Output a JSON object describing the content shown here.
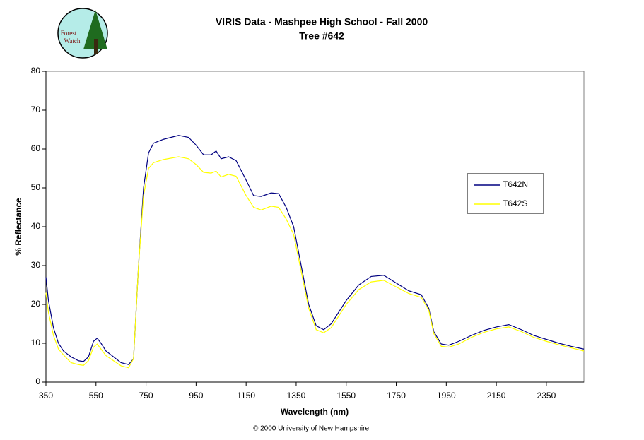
{
  "chart_data": {
    "type": "line",
    "title": "VIRIS Data - Mashpee High School - Fall 2000",
    "subtitle": "Tree #642",
    "logo": [
      "Forest",
      "Watch"
    ],
    "xlabel": "Wavelength (nm)",
    "ylabel": "% Reflectance",
    "copyright": "© 2000 University of New Hampshire",
    "x": [
      350,
      360,
      380,
      400,
      420,
      450,
      480,
      500,
      520,
      540,
      555,
      570,
      590,
      620,
      650,
      680,
      700,
      720,
      740,
      760,
      780,
      820,
      880,
      920,
      950,
      980,
      1010,
      1030,
      1050,
      1080,
      1110,
      1150,
      1180,
      1210,
      1250,
      1280,
      1310,
      1340,
      1370,
      1400,
      1430,
      1460,
      1490,
      1550,
      1600,
      1650,
      1700,
      1750,
      1800,
      1850,
      1880,
      1900,
      1930,
      1960,
      2000,
      2050,
      2100,
      2150,
      2200,
      2250,
      2300,
      2350,
      2400,
      2450,
      2500
    ],
    "series": [
      {
        "name": "T642N",
        "color": "#000080",
        "values": [
          27,
          21,
          14,
          10,
          8,
          6.5,
          5.5,
          5.3,
          6.5,
          10.5,
          11.3,
          10,
          8,
          6.5,
          5,
          4.5,
          6,
          30,
          50,
          59,
          61.5,
          62.5,
          63.5,
          63,
          61,
          58.5,
          58.5,
          59.5,
          57.5,
          58,
          57,
          52,
          48,
          47.8,
          48.7,
          48.5,
          45,
          40,
          30,
          20,
          14.5,
          13.5,
          15,
          21,
          25,
          27.2,
          27.5,
          25.5,
          23.5,
          22.5,
          19,
          13,
          9.8,
          9.5,
          10.5,
          12,
          13.3,
          14.2,
          14.8,
          13.5,
          12,
          11,
          10,
          9.2,
          8.5
        ]
      },
      {
        "name": "T642S",
        "color": "#ffff00",
        "values": [
          23,
          18,
          12,
          8.5,
          7,
          5,
          4.5,
          4.3,
          5.5,
          9,
          9.8,
          8.5,
          6.8,
          5.5,
          4.2,
          3.7,
          6,
          30,
          48,
          55,
          56.5,
          57.3,
          58,
          57.5,
          56,
          54,
          53.8,
          54.3,
          52.8,
          53.5,
          53,
          48,
          45,
          44.3,
          45.3,
          45,
          42,
          38,
          28.5,
          19,
          13.5,
          12.7,
          14,
          20,
          23.8,
          25.8,
          26.2,
          24.5,
          22.8,
          21.8,
          18.5,
          12.5,
          9.2,
          9,
          9.8,
          11.5,
          12.8,
          13.7,
          14.2,
          13,
          11.5,
          10.5,
          9.6,
          8.8,
          8
        ]
      }
    ],
    "xlim": [
      350,
      2500
    ],
    "xticks": [
      350,
      550,
      750,
      950,
      1150,
      1350,
      1550,
      1750,
      1950,
      2150,
      2350
    ],
    "ylim": [
      0,
      80
    ],
    "yticks": [
      0,
      10,
      20,
      30,
      40,
      50,
      60,
      70,
      80
    ],
    "grid": false,
    "legend": "right"
  }
}
